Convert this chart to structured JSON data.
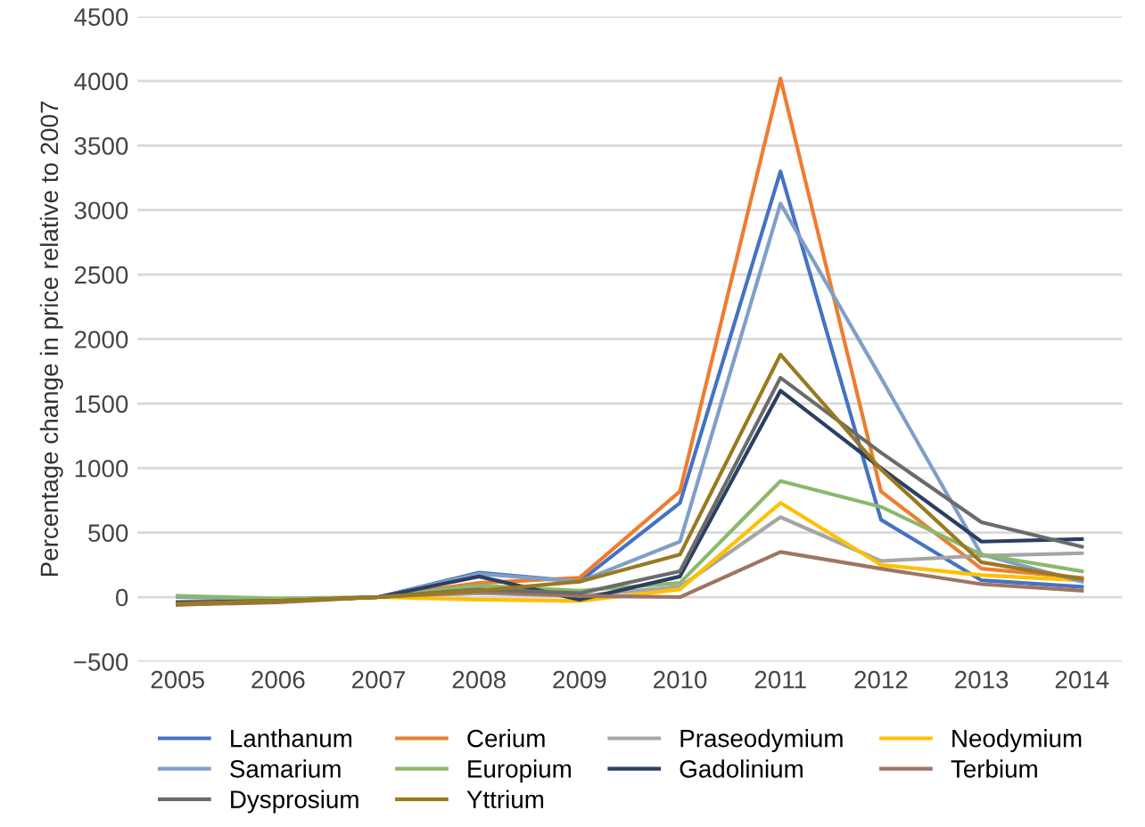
{
  "chart_data": {
    "type": "line",
    "ylabel": "Percentage change in price relative to 2007",
    "categories": [
      "2005",
      "2006",
      "2007",
      "2008",
      "2009",
      "2010",
      "2011",
      "2012",
      "2013",
      "2014"
    ],
    "series": [
      {
        "name": "Lanthanum",
        "color": "#4472c4",
        "values": [
          -50,
          -30,
          0,
          190,
          120,
          730,
          3300,
          600,
          130,
          80
        ]
      },
      {
        "name": "Cerium",
        "color": "#ed7d31",
        "values": [
          -60,
          -30,
          0,
          110,
          150,
          820,
          4020,
          820,
          220,
          150
        ]
      },
      {
        "name": "Praseodymium",
        "color": "#a5a5a5",
        "values": [
          -40,
          -30,
          0,
          30,
          10,
          80,
          620,
          280,
          320,
          340
        ]
      },
      {
        "name": "Neodymium",
        "color": "#ffc000",
        "values": [
          -40,
          -30,
          0,
          -20,
          -30,
          60,
          730,
          250,
          170,
          130
        ]
      },
      {
        "name": "Samarium",
        "color": "#7f9fc8",
        "values": [
          0,
          -20,
          0,
          180,
          120,
          430,
          3050,
          1700,
          330,
          120
        ]
      },
      {
        "name": "Europium",
        "color": "#8cb86b",
        "values": [
          10,
          -10,
          0,
          90,
          50,
          110,
          900,
          700,
          330,
          200
        ]
      },
      {
        "name": "Gadolinium",
        "color": "#2b3f63",
        "values": [
          -40,
          -30,
          0,
          160,
          -20,
          160,
          1600,
          1000,
          430,
          450
        ]
      },
      {
        "name": "Terbium",
        "color": "#9e7563",
        "values": [
          -60,
          -40,
          0,
          40,
          10,
          0,
          350,
          220,
          100,
          50
        ]
      },
      {
        "name": "Dysprosium",
        "color": "#6b6b6b",
        "values": [
          -50,
          -30,
          0,
          60,
          30,
          200,
          1700,
          1120,
          580,
          390
        ]
      },
      {
        "name": "Yttrium",
        "color": "#9a7a1e",
        "values": [
          -50,
          -30,
          0,
          50,
          120,
          330,
          1880,
          990,
          270,
          140
        ]
      }
    ],
    "ylim": [
      -500,
      4500
    ],
    "yticks": [
      {
        "value": -500,
        "label": "−500"
      },
      0,
      500,
      1000,
      1500,
      2000,
      2500,
      3000,
      3500,
      4000,
      4500
    ],
    "grid": "y",
    "legend": "bottom"
  }
}
